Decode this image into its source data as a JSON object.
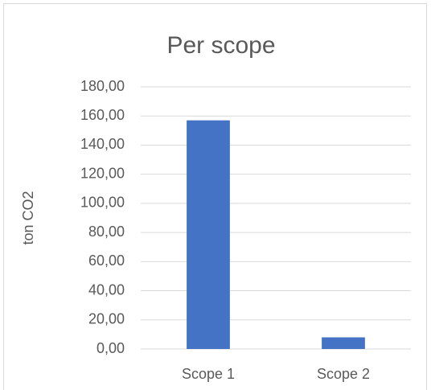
{
  "chart_data": {
    "type": "bar",
    "title": "Per scope",
    "y_label": "ton CO2",
    "categories": [
      "Scope 1",
      "Scope 2"
    ],
    "values": [
      157,
      8
    ],
    "color": "#4472c4",
    "ylim": [
      0,
      180
    ],
    "yticks": [
      {
        "value": 0,
        "label": "0,00"
      },
      {
        "value": 20,
        "label": "20,00"
      },
      {
        "value": 40,
        "label": "40,00"
      },
      {
        "value": 60,
        "label": "60,00"
      },
      {
        "value": 80,
        "label": "80,00"
      },
      {
        "value": 100,
        "label": "100,00"
      },
      {
        "value": 120,
        "label": "120,00"
      },
      {
        "value": 140,
        "label": "140,00"
      },
      {
        "value": 160,
        "label": "160,00"
      },
      {
        "value": 180,
        "label": "180,00"
      }
    ],
    "grid": true
  }
}
